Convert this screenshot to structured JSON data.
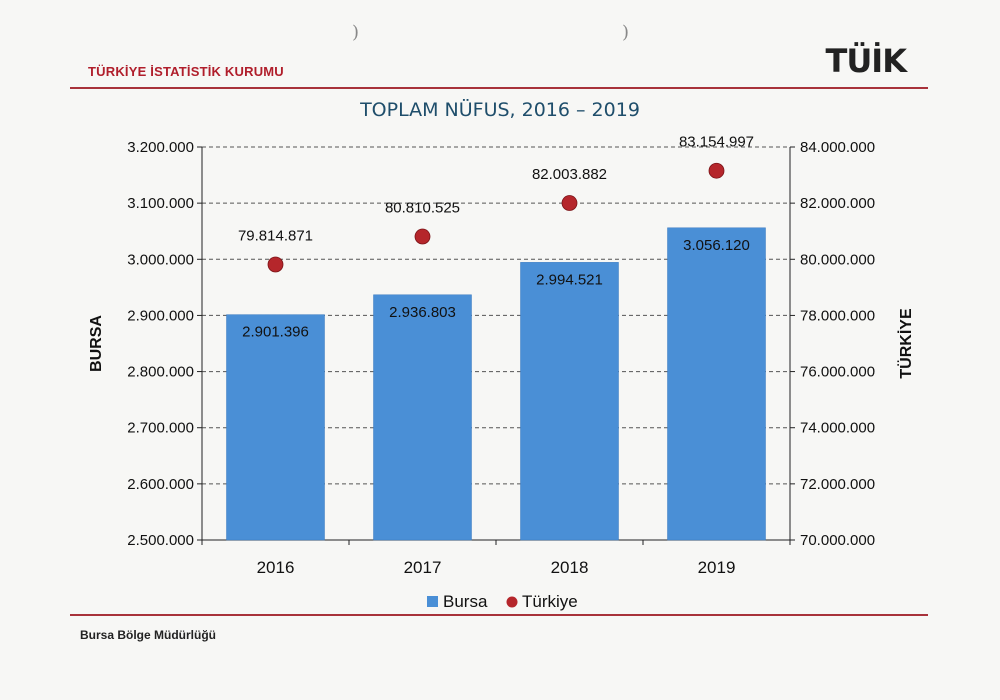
{
  "header": {
    "organization": "TÜRKİYE İSTATİSTİK KURUMU",
    "logo_text": "TÜİK"
  },
  "footer": {
    "office": "Bursa Bölge Müdürlüğü"
  },
  "colors": {
    "bar": "#4a8fd6",
    "point": "#b5262b",
    "rule": "#a8323a",
    "title": "#1f4e6b"
  },
  "chart_data": {
    "type": "bar",
    "title": "TOPLAM NÜFUS, 2016 – 2019",
    "categories": [
      "2016",
      "2017",
      "2018",
      "2019"
    ],
    "ylabel_left": "BURSA",
    "ylabel_right": "TÜRKİYE",
    "ylim_left": [
      2500000,
      3200000
    ],
    "ylim_right": [
      70000000,
      84000000
    ],
    "yticks_left": [
      "2.500.000",
      "2.600.000",
      "2.700.000",
      "2.800.000",
      "2.900.000",
      "3.000.000",
      "3.100.000",
      "3.200.000"
    ],
    "yticks_right": [
      "70.000.000",
      "72.000.000",
      "74.000.000",
      "76.000.000",
      "78.000.000",
      "80.000.000",
      "82.000.000",
      "84.000.000"
    ],
    "grid": true,
    "legend_position": "bottom",
    "series": [
      {
        "name": "Bursa",
        "kind": "bar",
        "axis": "left",
        "values": [
          2901396,
          2936803,
          2994521,
          3056120
        ],
        "labels": [
          "2.901.396",
          "2.936.803",
          "2.994.521",
          "3.056.120"
        ]
      },
      {
        "name": "Türkiye",
        "kind": "scatter",
        "axis": "right",
        "values": [
          79814871,
          80810525,
          82003882,
          83154997
        ],
        "labels": [
          "79.814.871",
          "80.810.525",
          "82.003.882",
          "83.154.997"
        ]
      }
    ]
  }
}
